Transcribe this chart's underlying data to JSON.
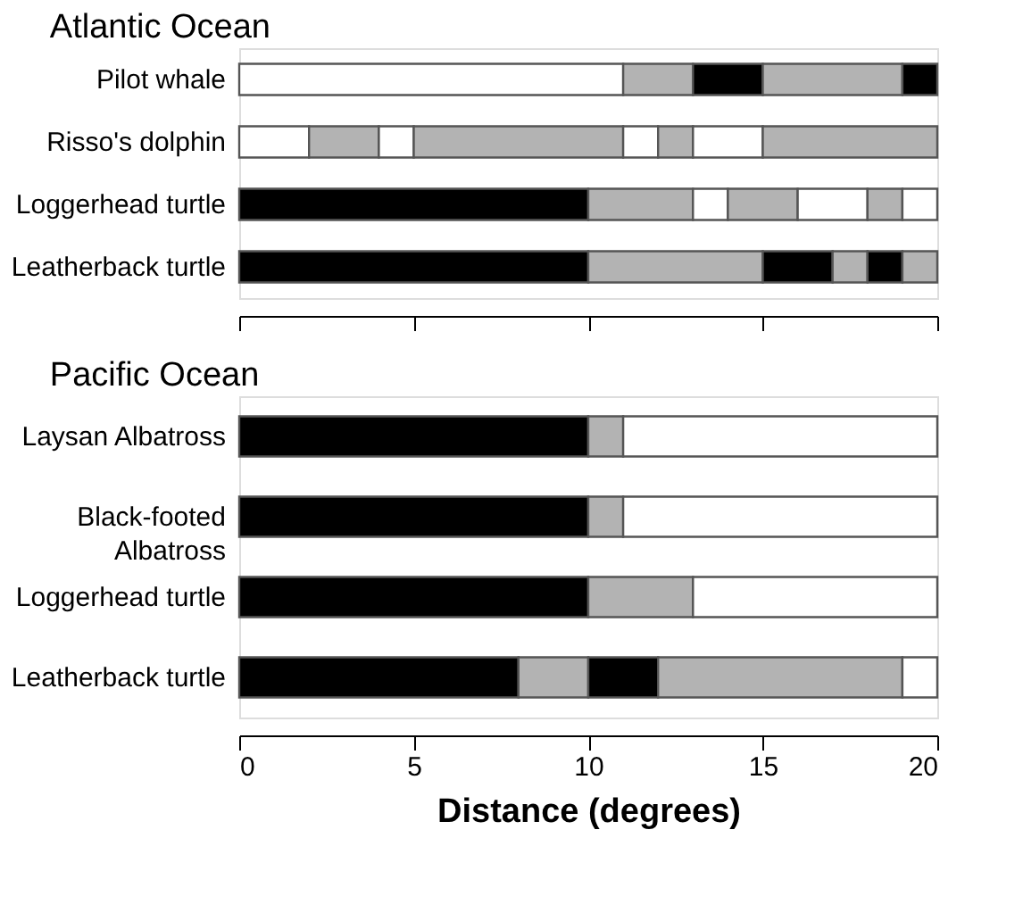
{
  "chart_data": [
    {
      "type": "bar",
      "orientation": "horizontal",
      "stacked": true,
      "title": "Atlantic Ocean",
      "categories": [
        "Pilot whale",
        "Risso's dolphin",
        "Loggerhead turtle",
        "Leatherback turtle"
      ],
      "xlim": [
        0,
        20
      ],
      "xticks": [
        0,
        5,
        10,
        15,
        20
      ],
      "tick_labels": "y",
      "grid": false,
      "series": [
        {
          "values": [
            11,
            2,
            10,
            10
          ],
          "colors": [
            "#ffffff",
            "#ffffff",
            "#000000",
            "#000000"
          ]
        },
        {
          "values": [
            2,
            2,
            3,
            5
          ],
          "colors": [
            "#b3b3b3",
            "#b3b3b3",
            "#b3b3b3",
            "#b3b3b3"
          ]
        },
        {
          "values": [
            2,
            1,
            1,
            2
          ],
          "colors": [
            "#000000",
            "#ffffff",
            "#ffffff",
            "#000000"
          ]
        },
        {
          "values": [
            4,
            6,
            2,
            1
          ],
          "colors": [
            "#b3b3b3",
            "#b3b3b3",
            "#b3b3b3",
            "#b3b3b3"
          ]
        },
        {
          "values": [
            1,
            1,
            2,
            1
          ],
          "colors": [
            "#000000",
            "#ffffff",
            "#ffffff",
            "#000000"
          ]
        },
        {
          "values": [
            null,
            1,
            1,
            1
          ],
          "colors": [
            null,
            "#b3b3b3",
            "#b3b3b3",
            "#b3b3b3"
          ]
        },
        {
          "values": [
            null,
            2,
            1,
            null
          ],
          "colors": [
            null,
            "#ffffff",
            "#ffffff",
            null
          ]
        },
        {
          "values": [
            null,
            5,
            null,
            null
          ],
          "colors": [
            null,
            "#b3b3b3",
            null,
            null
          ]
        }
      ]
    },
    {
      "type": "bar",
      "orientation": "horizontal",
      "stacked": true,
      "title": "Pacific Ocean",
      "xlabel": "Distance (degrees)",
      "categories": [
        "Laysan Albatross",
        "Black-footed\nAlbatross",
        "Loggerhead turtle",
        "Leatherback turtle"
      ],
      "xlim": [
        0,
        20
      ],
      "xticks": [
        0,
        5,
        10,
        15,
        20
      ],
      "grid": false,
      "series": [
        {
          "values": [
            10,
            10,
            10,
            8
          ],
          "colors": [
            "#000000",
            "#000000",
            "#000000",
            "#000000"
          ]
        },
        {
          "values": [
            1,
            1,
            3,
            2
          ],
          "colors": [
            "#b3b3b3",
            "#b3b3b3",
            "#b3b3b3",
            "#b3b3b3"
          ]
        },
        {
          "values": [
            9,
            9,
            7,
            2
          ],
          "colors": [
            "#ffffff",
            "#ffffff",
            "#ffffff",
            "#000000"
          ]
        },
        {
          "values": [
            null,
            null,
            null,
            7
          ],
          "colors": [
            null,
            null,
            null,
            "#b3b3b3"
          ]
        },
        {
          "values": [
            null,
            null,
            null,
            1
          ],
          "colors": [
            null,
            null,
            null,
            "#ffffff"
          ]
        }
      ]
    }
  ]
}
